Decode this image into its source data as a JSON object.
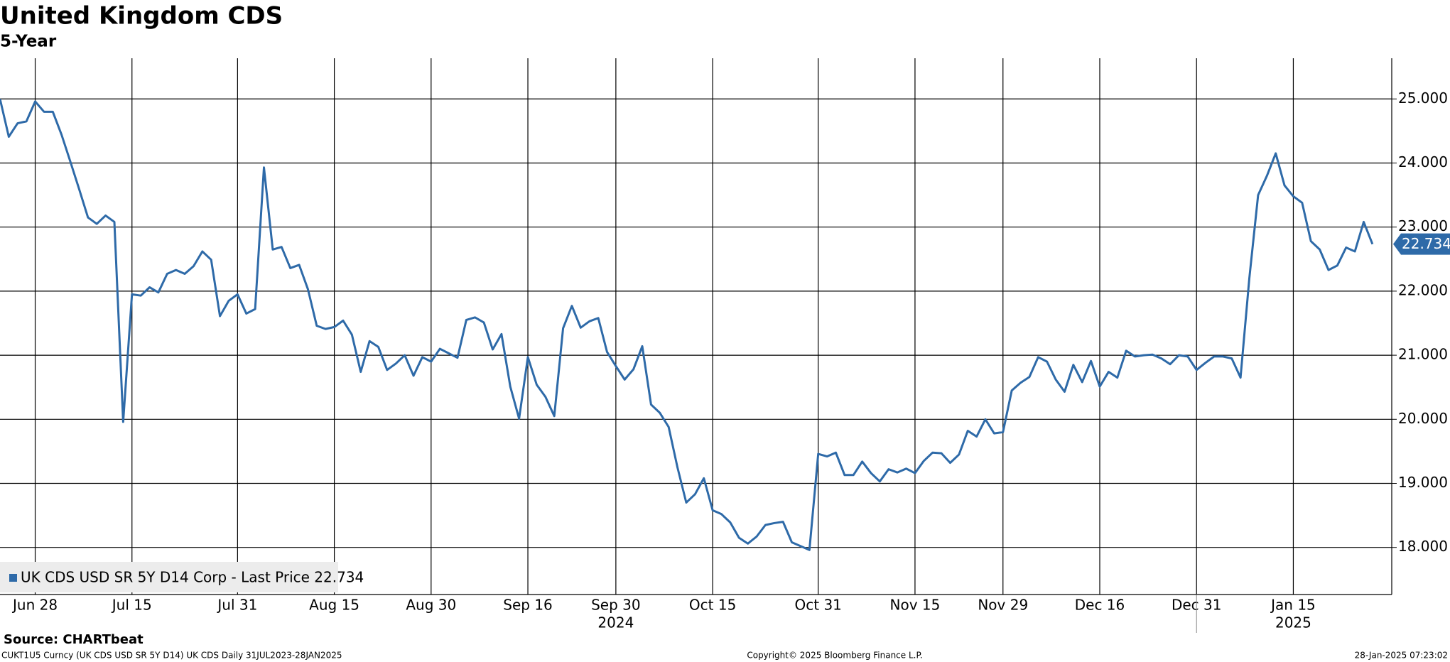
{
  "chart_data": {
    "type": "line",
    "title": "United Kingdom CDS",
    "subtitle": "5-Year",
    "categories": [
      null,
      null,
      null,
      null,
      "Jun 28",
      null,
      null,
      null,
      null,
      null,
      null,
      null,
      null,
      null,
      null,
      "Jul 15",
      null,
      null,
      null,
      null,
      null,
      null,
      null,
      null,
      null,
      null,
      null,
      "Jul 31",
      null,
      null,
      null,
      null,
      null,
      null,
      null,
      null,
      null,
      null,
      "Aug 15",
      null,
      null,
      null,
      null,
      null,
      null,
      null,
      null,
      null,
      null,
      "Aug 30",
      null,
      null,
      null,
      null,
      null,
      null,
      null,
      null,
      null,
      null,
      "Sep 16",
      null,
      null,
      null,
      null,
      null,
      null,
      null,
      null,
      null,
      "Sep 30",
      null,
      null,
      null,
      null,
      null,
      null,
      null,
      null,
      null,
      null,
      "Oct 15",
      null,
      null,
      null,
      null,
      null,
      null,
      null,
      null,
      null,
      null,
      null,
      "Oct 31",
      null,
      null,
      null,
      null,
      null,
      null,
      null,
      null,
      null,
      null,
      "Nov 15",
      null,
      null,
      null,
      null,
      null,
      null,
      null,
      null,
      null,
      "Nov 29",
      null,
      null,
      null,
      null,
      null,
      null,
      null,
      null,
      null,
      null,
      "Dec 16",
      null,
      null,
      null,
      null,
      null,
      null,
      null,
      null,
      null,
      null,
      "Dec 31",
      null,
      null,
      null,
      null,
      null,
      null,
      null,
      null,
      null,
      null,
      "Jan 15",
      null,
      null,
      null,
      null,
      null,
      null,
      null,
      null,
      null
    ],
    "years": [
      "2024",
      "2025"
    ],
    "series": [
      {
        "name": "UK CDS USD SR 5Y D14 Corp - Last Price 22.734",
        "color": "#2e6aa8",
        "values": [
          25.0,
          24.41,
          24.62,
          24.65,
          24.96,
          24.8,
          24.8,
          24.44,
          24.02,
          23.59,
          23.15,
          23.05,
          23.18,
          23.08,
          19.96,
          21.95,
          21.93,
          22.06,
          21.98,
          22.27,
          22.33,
          22.27,
          22.39,
          22.62,
          22.49,
          21.61,
          21.85,
          21.95,
          21.65,
          21.72,
          23.93,
          22.65,
          22.69,
          22.36,
          22.41,
          22.03,
          21.46,
          21.41,
          21.44,
          21.54,
          21.32,
          20.74,
          21.22,
          21.13,
          20.77,
          20.87,
          21.0,
          20.68,
          20.97,
          20.9,
          21.1,
          21.03,
          20.96,
          21.55,
          21.59,
          21.51,
          21.09,
          21.33,
          20.51,
          20.01,
          20.97,
          20.54,
          20.35,
          20.05,
          21.42,
          21.77,
          21.43,
          21.53,
          21.58,
          21.05,
          20.83,
          20.62,
          20.78,
          21.14,
          20.23,
          20.1,
          19.88,
          19.25,
          18.7,
          18.83,
          19.08,
          18.58,
          18.52,
          18.39,
          18.15,
          18.06,
          18.17,
          18.35,
          18.38,
          18.4,
          18.08,
          18.02,
          17.96,
          19.46,
          19.42,
          19.48,
          19.13,
          19.13,
          19.34,
          19.16,
          19.03,
          19.22,
          19.17,
          19.23,
          19.16,
          19.35,
          19.48,
          19.47,
          19.32,
          19.45,
          19.82,
          19.73,
          20.0,
          19.78,
          19.8,
          20.45,
          20.57,
          20.66,
          20.97,
          20.9,
          20.62,
          20.43,
          20.85,
          20.58,
          20.91,
          20.51,
          20.74,
          20.65,
          21.07,
          20.98,
          21.0,
          21.01,
          20.95,
          20.86,
          21.0,
          20.98,
          20.77,
          20.88,
          20.98,
          20.98,
          20.95,
          20.65,
          22.2,
          23.5,
          23.8,
          24.15,
          23.65,
          23.48,
          23.38,
          22.78,
          22.65,
          22.33,
          22.4,
          22.68,
          22.62,
          23.08,
          22.734
        ]
      }
    ],
    "ylim": [
      17.265,
      25.635
    ],
    "yticks": [
      {
        "value": 18,
        "label": "18.000"
      },
      {
        "value": 19,
        "label": "19.000"
      },
      {
        "value": 20,
        "label": "20.000"
      },
      {
        "value": 21,
        "label": "21.000"
      },
      {
        "value": 22,
        "label": "22.000"
      },
      {
        "value": 23,
        "label": "23.000"
      },
      {
        "value": 24,
        "label": "24.000"
      },
      {
        "value": 25,
        "label": "25.000"
      }
    ],
    "grid": true,
    "source": "Source: CHARTbeat",
    "footnote": "CUKT1U5 Curncy (UK CDS USD SR 5Y D14) UK CDS  Daily 31JUL2023-28JAN2025",
    "copyright": "Copyright© 2025 Bloomberg Finance L.P.",
    "timestamp": "28-Jan-2025 07:23:02"
  }
}
